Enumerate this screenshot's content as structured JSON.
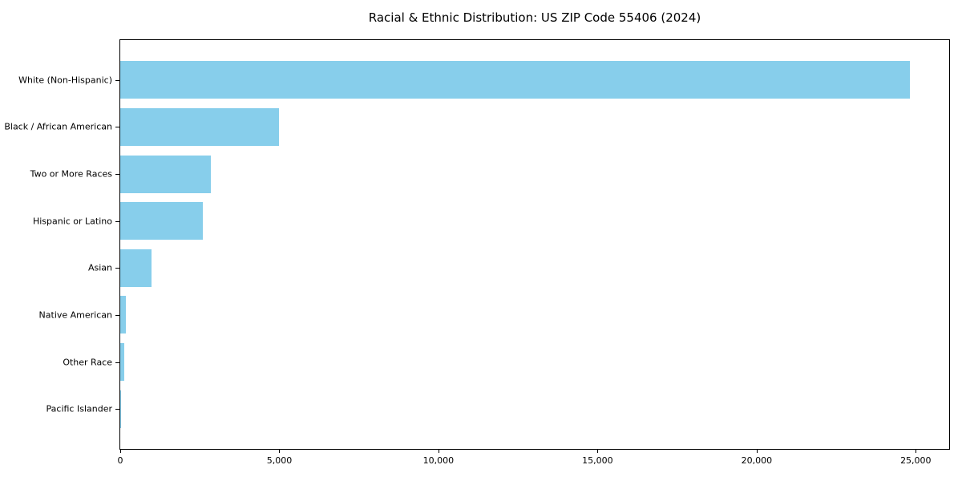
{
  "title": "Racial & Ethnic Distribution: US ZIP Code 55406 (2024)",
  "chart_data": {
    "type": "bar",
    "orientation": "horizontal",
    "title": "Racial & Ethnic Distribution: US ZIP Code 55406 (2024)",
    "categories": [
      "White (Non-Hispanic)",
      "Black / African American",
      "Two or More Races",
      "Hispanic or Latino",
      "Asian",
      "Native American",
      "Other Race",
      "Pacific Islander"
    ],
    "values": [
      24820,
      5000,
      2840,
      2590,
      980,
      175,
      125,
      20
    ],
    "xlabel": "",
    "ylabel": "",
    "xlim": [
      0,
      26050
    ],
    "x_ticks": [
      0,
      5000,
      10000,
      15000,
      20000,
      25000
    ],
    "x_tick_labels": [
      "0",
      "5,000",
      "10,000",
      "15,000",
      "20,000",
      "25,000"
    ],
    "bar_color": "#87CEEB",
    "spine_color": "#000000",
    "grid": false,
    "legend": null,
    "bar_width_fraction": 0.8,
    "y_margin_units": 0.85
  }
}
